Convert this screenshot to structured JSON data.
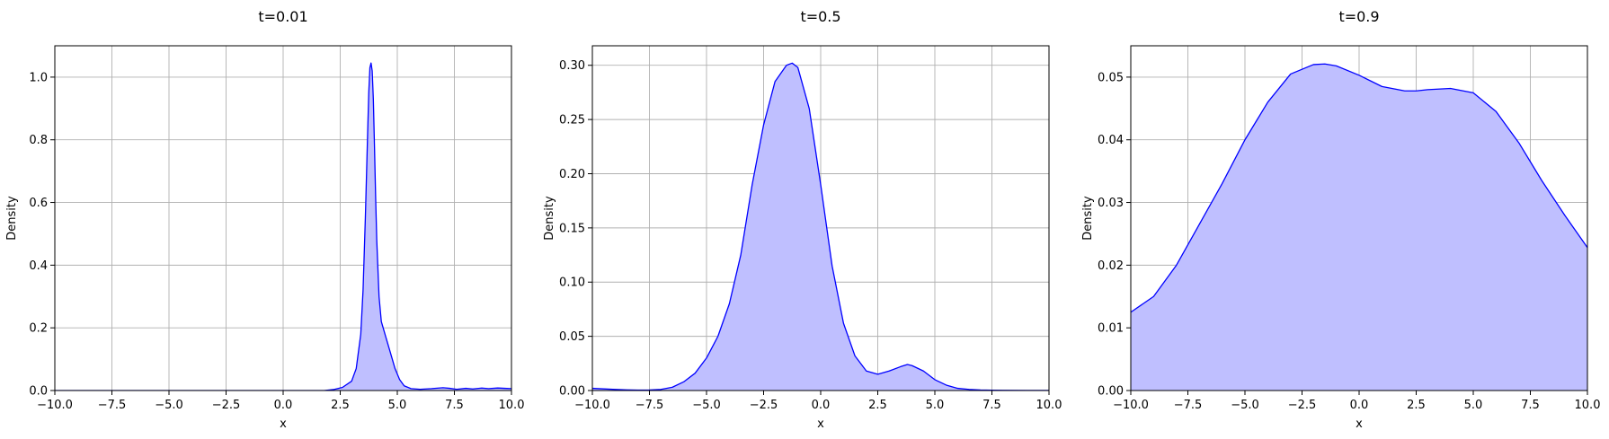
{
  "chart_data": [
    {
      "type": "area",
      "title": "t=0.01",
      "xlabel": "x",
      "ylabel": "Density",
      "xlim": [
        -10,
        10
      ],
      "ylim": [
        0,
        1.1
      ],
      "xticks": [
        -10,
        -7.5,
        -5,
        -2.5,
        0,
        2.5,
        5,
        7.5,
        10
      ],
      "xtick_labels": [
        "−10.0",
        "−7.5",
        "−5.0",
        "−2.5",
        "0.0",
        "2.5",
        "5.0",
        "7.5",
        "10.0"
      ],
      "yticks": [
        0,
        0.2,
        0.4,
        0.6,
        0.8,
        1.0
      ],
      "ytick_labels": [
        "0.0",
        "0.2",
        "0.4",
        "0.6",
        "0.8",
        "1.0"
      ],
      "grid": true,
      "color": "#0000ff",
      "fill_color": "#bfbfff",
      "x": [
        -10,
        1.8,
        2.2,
        2.6,
        3.0,
        3.2,
        3.4,
        3.5,
        3.6,
        3.7,
        3.75,
        3.8,
        3.85,
        3.9,
        3.95,
        4.0,
        4.05,
        4.1,
        4.2,
        4.3,
        4.5,
        4.7,
        4.9,
        5.1,
        5.3,
        5.6,
        6.0,
        6.5,
        7.0,
        7.3,
        7.6,
        8.0,
        8.3,
        8.7,
        9.0,
        9.4,
        9.7,
        10
      ],
      "y": [
        0,
        0,
        0.003,
        0.01,
        0.03,
        0.07,
        0.18,
        0.32,
        0.55,
        0.82,
        0.95,
        1.03,
        1.045,
        1.02,
        0.93,
        0.78,
        0.62,
        0.48,
        0.3,
        0.22,
        0.17,
        0.12,
        0.07,
        0.035,
        0.015,
        0.006,
        0.004,
        0.006,
        0.009,
        0.007,
        0.004,
        0.007,
        0.005,
        0.008,
        0.006,
        0.008,
        0.007,
        0.006
      ]
    },
    {
      "type": "area",
      "title": "t=0.5",
      "xlabel": "x",
      "ylabel": "Density",
      "xlim": [
        -10,
        10
      ],
      "ylim": [
        0,
        0.318
      ],
      "xticks": [
        -10,
        -7.5,
        -5,
        -2.5,
        0,
        2.5,
        5,
        7.5,
        10
      ],
      "xtick_labels": [
        "−10.0",
        "−7.5",
        "−5.0",
        "−2.5",
        "0.0",
        "2.5",
        "5.0",
        "7.5",
        "10.0"
      ],
      "yticks": [
        0,
        0.05,
        0.1,
        0.15,
        0.2,
        0.25,
        0.3
      ],
      "ytick_labels": [
        "0.00",
        "0.05",
        "0.10",
        "0.15",
        "0.20",
        "0.25",
        "0.30"
      ],
      "grid": true,
      "color": "#0000ff",
      "fill_color": "#bfbfff",
      "x": [
        -10,
        -9.5,
        -9,
        -8.5,
        -8,
        -7.5,
        -7,
        -6.5,
        -6,
        -5.5,
        -5,
        -4.5,
        -4,
        -3.5,
        -3,
        -2.5,
        -2,
        -1.5,
        -1.25,
        -1,
        -0.5,
        0,
        0.5,
        1,
        1.5,
        2,
        2.5,
        3,
        3.5,
        3.8,
        4,
        4.5,
        5,
        5.5,
        6,
        6.5,
        7,
        7.5,
        8,
        9,
        10
      ],
      "y": [
        0.002,
        0.0015,
        0.001,
        0.0006,
        0.0004,
        0.0005,
        0.001,
        0.003,
        0.008,
        0.016,
        0.03,
        0.05,
        0.08,
        0.125,
        0.19,
        0.245,
        0.285,
        0.3,
        0.302,
        0.298,
        0.26,
        0.19,
        0.115,
        0.062,
        0.032,
        0.018,
        0.015,
        0.018,
        0.022,
        0.024,
        0.023,
        0.018,
        0.01,
        0.005,
        0.002,
        0.001,
        0.0005,
        0.0003,
        0.0002,
        0.0001,
        0.0001
      ]
    },
    {
      "type": "area",
      "title": "t=0.9",
      "xlabel": "x",
      "ylabel": "Density",
      "xlim": [
        -10,
        10
      ],
      "ylim": [
        0,
        0.055
      ],
      "xticks": [
        -10,
        -7.5,
        -5,
        -2.5,
        0,
        2.5,
        5,
        7.5,
        10
      ],
      "xtick_labels": [
        "−10.0",
        "−7.5",
        "−5.0",
        "−2.5",
        "0.0",
        "2.5",
        "5.0",
        "7.5",
        "10.0"
      ],
      "yticks": [
        0,
        0.01,
        0.02,
        0.03,
        0.04,
        0.05
      ],
      "ytick_labels": [
        "0.00",
        "0.01",
        "0.02",
        "0.03",
        "0.04",
        "0.05"
      ],
      "grid": true,
      "color": "#0000ff",
      "fill_color": "#bfbfff",
      "x": [
        -10,
        -9,
        -8,
        -7,
        -6,
        -5,
        -4,
        -3,
        -2,
        -1.5,
        -1,
        0,
        1,
        2,
        2.5,
        3,
        4,
        5,
        6,
        7,
        8,
        9,
        10
      ],
      "y": [
        0.0125,
        0.015,
        0.02,
        0.0265,
        0.033,
        0.04,
        0.046,
        0.0505,
        0.052,
        0.0521,
        0.0518,
        0.0503,
        0.0485,
        0.0478,
        0.0478,
        0.048,
        0.0482,
        0.0475,
        0.0445,
        0.0395,
        0.0335,
        0.028,
        0.0228
      ]
    }
  ]
}
